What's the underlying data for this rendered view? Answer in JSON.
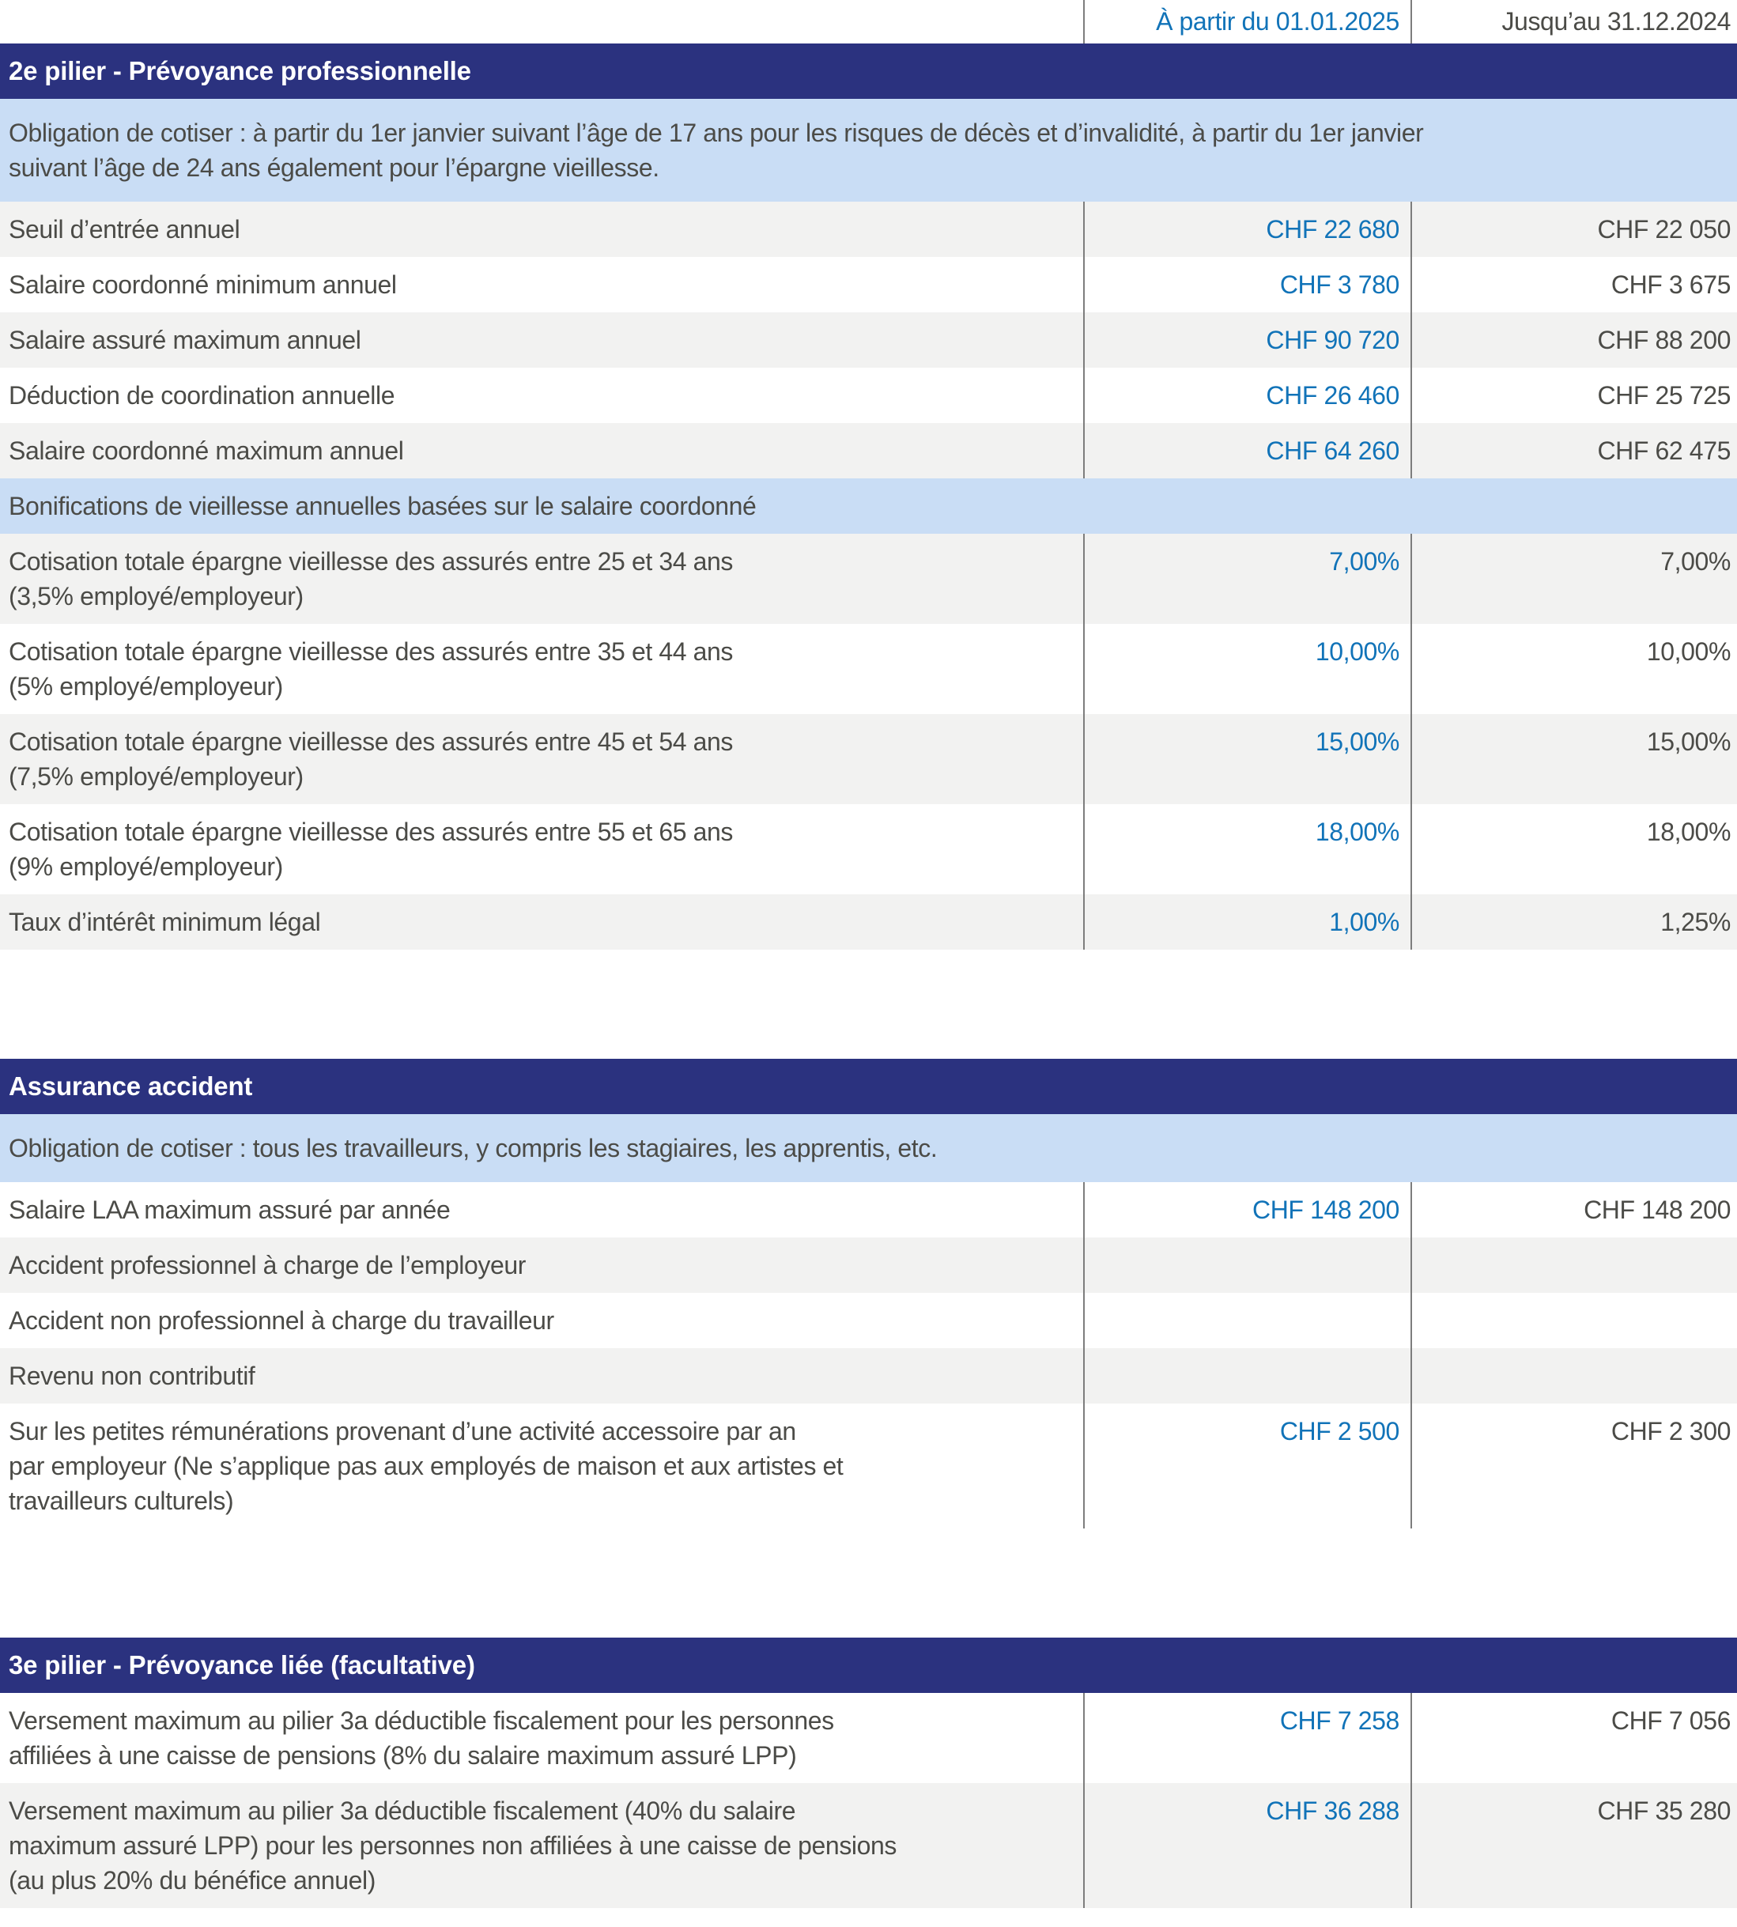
{
  "columns": {
    "col_2025": "À partir du 01.01.2025",
    "col_2024": "Jusqu’au 31.12.2024"
  },
  "colors": {
    "navy_band": "#2b327f",
    "light_blue_band": "#c9ddf5",
    "row_gray": "#f2f2f1",
    "accent_blue_values": "#1173b8",
    "text_dark": "#4b4b47",
    "divider_gray": "#7d7d7d"
  },
  "sections": [
    {
      "title": "2e pilier - Prévoyance professionnelle",
      "note": "Obligation de cotiser : à partir du 1er janvier suivant l’âge de 17 ans pour les risques de décès et d’invalidité, à partir du 1er janvier\nsuivant l’âge de 24 ans également pour l’épargne vieillesse.",
      "subheader": "Bonifications de vieillesse annuelles basées sur le salaire coordonné",
      "rows": [
        {
          "label": "Seuil d’entrée annuel",
          "v2025": "CHF 22 680",
          "v2024": "CHF 22 050"
        },
        {
          "label": "Salaire coordonné minimum annuel",
          "v2025": "CHF 3 780",
          "v2024": "CHF 3 675"
        },
        {
          "label": "Salaire assuré maximum annuel",
          "v2025": "CHF 90 720",
          "v2024": "CHF 88 200"
        },
        {
          "label": "Déduction de coordination annuelle",
          "v2025": "CHF 26 460",
          "v2024": "CHF 25 725"
        },
        {
          "label": "Salaire coordonné maximum annuel",
          "v2025": "CHF 64 260",
          "v2024": "CHF 62 475"
        },
        {
          "label": "Cotisation totale épargne vieillesse des assurés entre 25 et 34 ans\n(3,5% employé/employeur)",
          "v2025": "7,00%",
          "v2024": "7,00%"
        },
        {
          "label": "Cotisation totale épargne vieillesse des assurés entre 35 et 44 ans\n(5% employé/employeur)",
          "v2025": "10,00%",
          "v2024": "10,00%"
        },
        {
          "label": "Cotisation totale épargne vieillesse des assurés entre 45 et 54 ans\n(7,5% employé/employeur)",
          "v2025": "15,00%",
          "v2024": "15,00%"
        },
        {
          "label": "Cotisation totale épargne vieillesse des assurés entre 55 et 65 ans\n(9% employé/employeur)",
          "v2025": "18,00%",
          "v2024": "18,00%"
        },
        {
          "label": "Taux d’intérêt minimum légal",
          "v2025": "1,00%",
          "v2024": "1,25%"
        }
      ]
    },
    {
      "title": "Assurance accident",
      "note": "Obligation de cotiser : tous les travailleurs, y compris les stagiaires, les apprentis, etc.",
      "rows": [
        {
          "label": "Salaire LAA maximum assuré par année",
          "v2025": "CHF 148 200",
          "v2024": "CHF 148 200"
        },
        {
          "label": "Accident professionnel à charge de l’employeur",
          "v2025": "",
          "v2024": ""
        },
        {
          "label": "Accident non professionnel à charge du travailleur",
          "v2025": "",
          "v2024": ""
        },
        {
          "label": "Revenu non contributif",
          "v2025": "",
          "v2024": ""
        },
        {
          "label": "Sur les petites rémunérations provenant d’une activité accessoire par an\npar employeur (Ne s’applique pas aux employés de maison et aux artistes et\ntravailleurs culturels)",
          "v2025": "CHF 2 500",
          "v2024": "CHF 2 300"
        }
      ]
    },
    {
      "title": "3e pilier - Prévoyance liée (facultative)",
      "rows": [
        {
          "label": "Versement maximum au pilier 3a déductible fiscalement pour les personnes\naffiliées à une caisse de pensions (8% du salaire maximum assuré LPP)",
          "v2025": "CHF 7 258",
          "v2024": "CHF 7 056"
        },
        {
          "label": "Versement maximum au pilier 3a déductible fiscalement (40% du salaire\nmaximum assuré LPP) pour les personnes non affiliées à une caisse de pensions\n(au plus 20% du bénéfice annuel)",
          "v2025": "CHF 36 288",
          "v2024": "CHF 35 280"
        }
      ]
    }
  ]
}
